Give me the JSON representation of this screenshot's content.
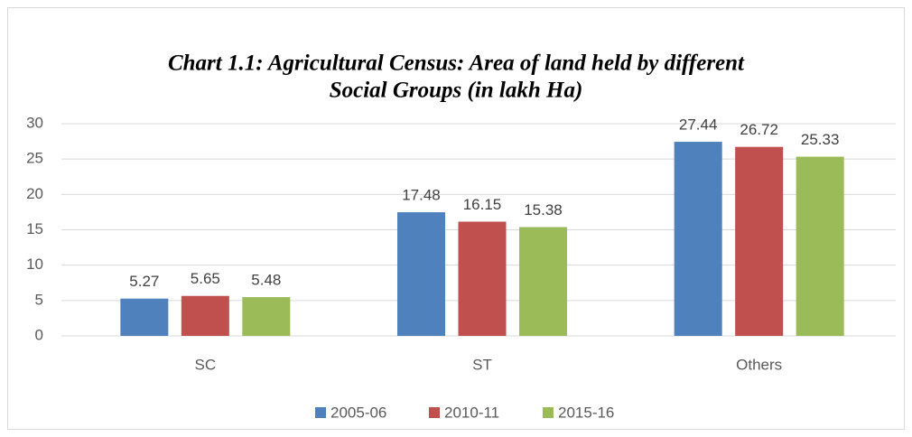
{
  "chart_data": {
    "type": "bar",
    "title": [
      "Chart 1.1: Agricultural Census: Area of land held by different",
      "Social Groups (in lakh Ha)"
    ],
    "categories": [
      "SC",
      "ST",
      "Others"
    ],
    "series": [
      {
        "name": "2005-06",
        "color": "#4f81bd",
        "values": [
          5.27,
          17.48,
          27.44
        ]
      },
      {
        "name": "2010-11",
        "color": "#c0504d",
        "values": [
          5.65,
          16.15,
          26.72
        ]
      },
      {
        "name": "2015-16",
        "color": "#9bbb59",
        "values": [
          5.48,
          15.38,
          25.33
        ]
      }
    ],
    "ylim": [
      0,
      30
    ],
    "yticks": [
      0,
      5,
      10,
      15,
      20,
      25,
      30
    ],
    "grid": true,
    "legend": "bottom"
  }
}
